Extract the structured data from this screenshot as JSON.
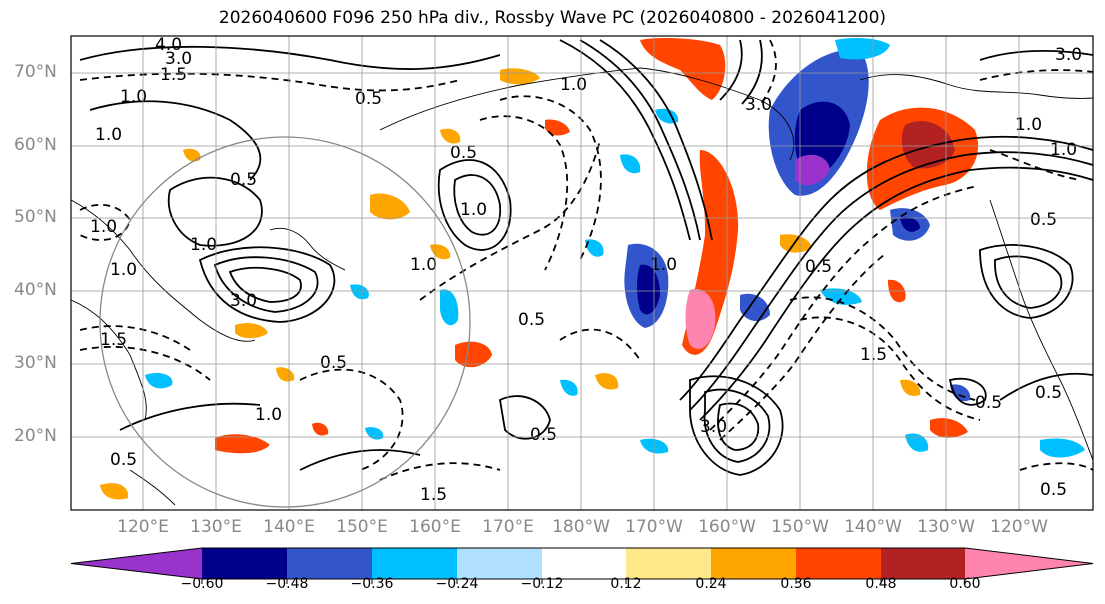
{
  "title": "2026040600 F096 250 hPa div., Rossby Wave PC (2026040800 - 2026041200)",
  "lat_labels": [
    "70°N",
    "60°N",
    "50°N",
    "40°N",
    "30°N",
    "20°N"
  ],
  "lon_labels": [
    "120°E",
    "130°E",
    "140°E",
    "150°E",
    "160°E",
    "170°E",
    "180°W",
    "170°W",
    "160°W",
    "150°W",
    "140°W",
    "130°W",
    "120°W"
  ],
  "colorbar": {
    "colors": [
      "#9933cc",
      "#00008b",
      "#3355cc",
      "#00bfff",
      "#b0e0ff",
      "#ffffff",
      "#ffe88a",
      "#ffa500",
      "#ff4500",
      "#b22222",
      "#ff85b0"
    ],
    "ticks": [
      "−0.60",
      "−0.48",
      "−0.36",
      "−0.24",
      "−0.12",
      "0.12",
      "0.24",
      "0.36",
      "0.48",
      "0.60"
    ]
  },
  "contour_labels": [
    "4.0",
    "3.0",
    "1.5",
    "1.0",
    "0.5",
    "1.0",
    "0.5",
    "1.0",
    "0.5",
    "3.0",
    "1.0",
    "0.5",
    "1.0",
    "3.0",
    "0.5",
    "1.5",
    "1.0",
    "0.5",
    "1.0",
    "0.5",
    "0.5",
    "1.0",
    "1.5",
    "3.0",
    "0.5",
    "3.0",
    "1.0",
    "0.5",
    "1.0",
    "1.5",
    "1.0",
    "0.5",
    "1.0",
    "0.5"
  ]
}
